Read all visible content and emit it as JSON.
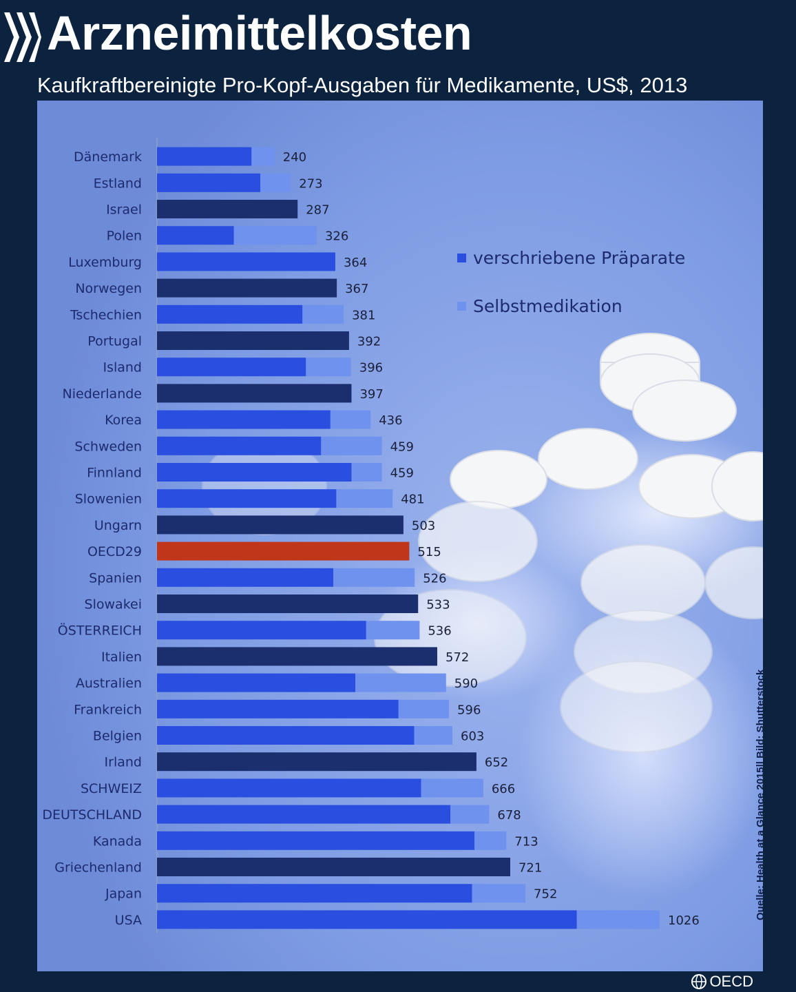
{
  "title": "Arzneimittelkosten",
  "subtitle": "Kaufkraftbereinigte Pro-Kopf-Ausgaben für Medikamente, US$, 2013",
  "source": "Quelle: Health at a Glance 2015|| Bild: Shutterstock",
  "brand": "OECD",
  "legend": {
    "prescribed": "verschriebene Präparate",
    "otc": "Selbstmedikation"
  },
  "colors": {
    "prescribed": "#2a4fe0",
    "otc": "#6e92ee",
    "dark": "#1b2f6e",
    "oecd": "#c0361b",
    "labels": "#1d2a6e"
  },
  "chart_data": {
    "type": "bar",
    "orientation": "horizontal",
    "stacked": true,
    "xlim": [
      0,
      1100
    ],
    "series": [
      {
        "name": "verschriebene Präparate",
        "key": "prescribed"
      },
      {
        "name": "Selbstmedikation",
        "key": "otc"
      }
    ],
    "rows": [
      {
        "country": "Dänemark",
        "total": 240,
        "prescribed": 193,
        "otc": 47,
        "style": "stacked"
      },
      {
        "country": "Estland",
        "total": 273,
        "prescribed": 211,
        "otc": 62,
        "style": "stacked"
      },
      {
        "country": "Israel",
        "total": 287,
        "style": "total"
      },
      {
        "country": "Polen",
        "total": 326,
        "prescribed": 157,
        "otc": 169,
        "style": "stacked"
      },
      {
        "country": "Luxemburg",
        "total": 364,
        "prescribed": 364,
        "otc": 0,
        "style": "stacked"
      },
      {
        "country": "Norwegen",
        "total": 367,
        "style": "total"
      },
      {
        "country": "Tschechien",
        "total": 381,
        "prescribed": 297,
        "otc": 84,
        "style": "stacked"
      },
      {
        "country": "Portugal",
        "total": 392,
        "style": "total"
      },
      {
        "country": "Island",
        "total": 396,
        "prescribed": 304,
        "otc": 92,
        "style": "stacked"
      },
      {
        "country": "Niederlande",
        "total": 397,
        "style": "total"
      },
      {
        "country": "Korea",
        "total": 436,
        "prescribed": 354,
        "otc": 82,
        "style": "stacked"
      },
      {
        "country": "Schweden",
        "total": 459,
        "prescribed": 335,
        "otc": 124,
        "style": "stacked"
      },
      {
        "country": "Finnland",
        "total": 459,
        "prescribed": 397,
        "otc": 62,
        "style": "stacked"
      },
      {
        "country": "Slowenien",
        "total": 481,
        "prescribed": 366,
        "otc": 115,
        "style": "stacked"
      },
      {
        "country": "Ungarn",
        "total": 503,
        "style": "total"
      },
      {
        "country": "OECD29",
        "total": 515,
        "style": "oecd"
      },
      {
        "country": "Spanien",
        "total": 526,
        "prescribed": 360,
        "otc": 166,
        "style": "stacked"
      },
      {
        "country": "Slowakei",
        "total": 533,
        "style": "total"
      },
      {
        "country": "ÖSTERREICH",
        "total": 536,
        "prescribed": 427,
        "otc": 109,
        "style": "stacked"
      },
      {
        "country": "Italien",
        "total": 572,
        "style": "total"
      },
      {
        "country": "Australien",
        "total": 590,
        "prescribed": 405,
        "otc": 185,
        "style": "stacked"
      },
      {
        "country": "Frankreich",
        "total": 596,
        "prescribed": 493,
        "otc": 103,
        "style": "stacked"
      },
      {
        "country": "Belgien",
        "total": 603,
        "prescribed": 525,
        "otc": 78,
        "style": "stacked"
      },
      {
        "country": "Irland",
        "total": 652,
        "style": "total"
      },
      {
        "country": "SCHWEIZ",
        "total": 666,
        "prescribed": 539,
        "otc": 127,
        "style": "stacked"
      },
      {
        "country": "DEUTSCHLAND",
        "total": 678,
        "prescribed": 599,
        "otc": 79,
        "style": "stacked"
      },
      {
        "country": "Kanada",
        "total": 713,
        "prescribed": 648,
        "otc": 65,
        "style": "stacked"
      },
      {
        "country": "Griechenland",
        "total": 721,
        "style": "total"
      },
      {
        "country": "Japan",
        "total": 752,
        "prescribed": 643,
        "otc": 109,
        "style": "stacked"
      },
      {
        "country": "USA",
        "total": 1026,
        "prescribed": 857,
        "otc": 169,
        "style": "stacked"
      }
    ]
  }
}
